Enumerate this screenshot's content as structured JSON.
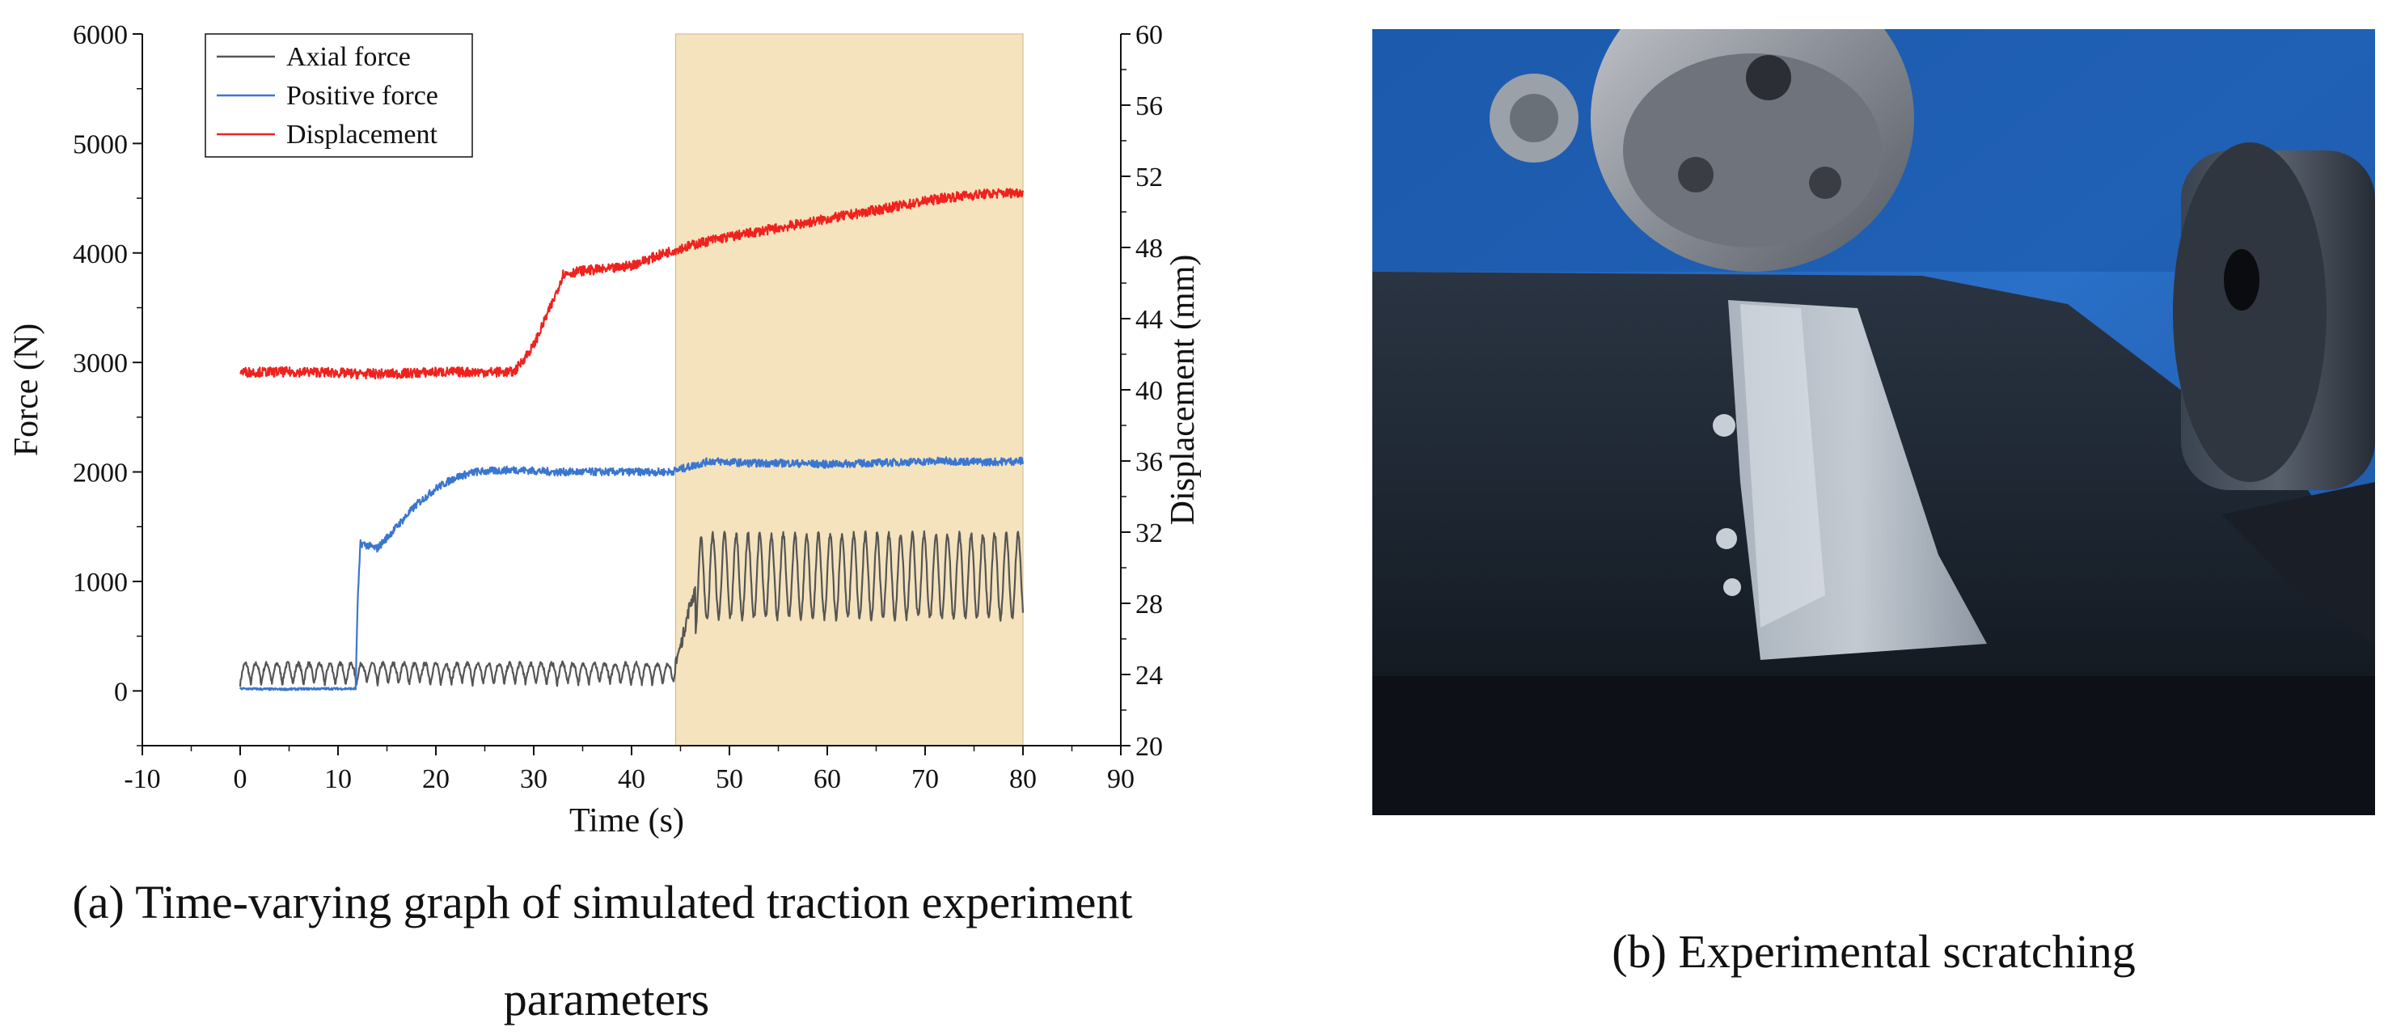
{
  "chart_data": {
    "type": "line",
    "xlabel": "Time (s)",
    "ylabel_left": "Force (N)",
    "ylabel_right": "Displacement (mm)",
    "xlim": [
      -10,
      90
    ],
    "ylim_left": [
      -500,
      6000
    ],
    "ylim_right": [
      20,
      60
    ],
    "x_ticks": [
      -10,
      0,
      10,
      20,
      30,
      40,
      50,
      60,
      70,
      80,
      90
    ],
    "y_ticks_left": [
      0,
      1000,
      2000,
      3000,
      4000,
      5000,
      6000
    ],
    "y_ticks_right": [
      20,
      24,
      28,
      32,
      36,
      40,
      44,
      48,
      52,
      56,
      60
    ],
    "legend_position": "top-left",
    "grid": false,
    "highlight_region": {
      "x_start": 44.5,
      "x_end": 80,
      "color": "#f5e3be"
    },
    "series": [
      {
        "name": "Axial force",
        "axis": "left",
        "color": "#555555",
        "x": [
          0,
          4,
          8,
          12,
          16,
          20,
          24,
          28,
          32,
          36,
          40,
          44,
          45,
          46,
          47,
          48,
          52,
          56,
          60,
          64,
          68,
          72,
          76,
          80
        ],
        "y": [
          150,
          160,
          150,
          160,
          150,
          160,
          150,
          160,
          150,
          160,
          150,
          160,
          400,
          800,
          1000,
          1050,
          1050,
          1050,
          1050,
          1050,
          1050,
          1050,
          1050,
          1050
        ]
      },
      {
        "name": "Positive force",
        "axis": "left",
        "color": "#3a76d0",
        "x": [
          0,
          4,
          8,
          11.8,
          12,
          12.3,
          14,
          16,
          18,
          20,
          22,
          24,
          28,
          32,
          36,
          40,
          44,
          48,
          52,
          56,
          60,
          64,
          68,
          72,
          76,
          80
        ],
        "y": [
          20,
          15,
          20,
          20,
          800,
          1350,
          1300,
          1500,
          1700,
          1850,
          1950,
          2000,
          2020,
          2000,
          2000,
          2000,
          2000,
          2100,
          2080,
          2080,
          2070,
          2080,
          2090,
          2100,
          2090,
          2100
        ]
      },
      {
        "name": "Displacement",
        "axis": "right",
        "color": "#f0221e",
        "x": [
          0,
          4,
          8,
          12,
          16,
          20,
          24,
          28,
          30,
          32,
          33,
          35,
          38,
          40,
          44,
          48,
          52,
          56,
          60,
          64,
          68,
          72,
          76,
          80
        ],
        "y": [
          41.0,
          41.0,
          41.0,
          40.9,
          40.9,
          41.0,
          41.0,
          41.0,
          42.5,
          45.0,
          46.5,
          46.7,
          46.8,
          47.0,
          47.8,
          48.4,
          48.8,
          49.2,
          49.6,
          50.0,
          50.4,
          50.8,
          51.0,
          51.1
        ]
      }
    ]
  },
  "captions": {
    "a_line1": "(a) Time-varying graph of simulated traction experiment",
    "a_line2": "parameters",
    "b": "(b) Experimental scratching"
  }
}
